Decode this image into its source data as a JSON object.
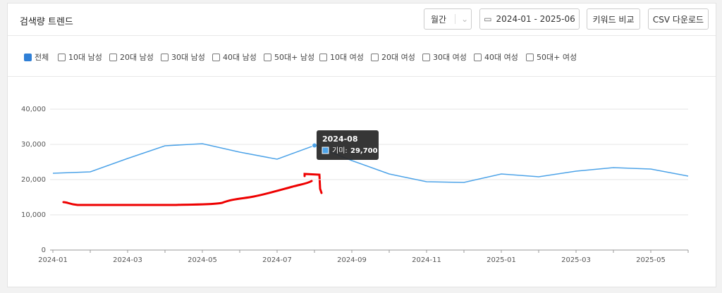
{
  "header": {
    "title": "검색량 트렌드",
    "period": "월간",
    "date_range": "2024-01 - 2025-06",
    "compare_button": "키워드 비교",
    "csv_button": "CSV 다운로드"
  },
  "filters": [
    {
      "label": "전체",
      "checked": true
    },
    {
      "label": "10대 남성",
      "checked": false
    },
    {
      "label": "20대 남성",
      "checked": false
    },
    {
      "label": "30대 남성",
      "checked": false
    },
    {
      "label": "40대 남성",
      "checked": false
    },
    {
      "label": "50대+ 남성",
      "checked": false
    },
    {
      "label": "10대 여성",
      "checked": false
    },
    {
      "label": "20대 여성",
      "checked": false
    },
    {
      "label": "30대 여성",
      "checked": false
    },
    {
      "label": "40대 여성",
      "checked": false
    },
    {
      "label": "50대+ 여성",
      "checked": false
    }
  ],
  "chart_data": {
    "type": "line",
    "categories": [
      "2024-01",
      null,
      "2024-03",
      null,
      "2024-05",
      null,
      "2024-07",
      null,
      "2024-09",
      null,
      "2024-11",
      null,
      "2025-01",
      null,
      "2025-03",
      null,
      "2025-05",
      null
    ],
    "series": [
      {
        "name": "기미",
        "color": "#4da3e8",
        "values": [
          21800,
          22200,
          26000,
          29600,
          30200,
          27800,
          25800,
          29700,
          25400,
          21600,
          19400,
          19200,
          21600,
          20800,
          22400,
          23400,
          23000,
          21000
        ]
      }
    ],
    "ylim": [
      0,
      40000
    ],
    "yticks": [
      0,
      {
        "value": 10000,
        "label": "10,000"
      },
      {
        "value": 20000,
        "label": "20,000"
      },
      {
        "value": 30000,
        "label": "30,000"
      },
      {
        "value": 40000,
        "label": "40,000"
      }
    ],
    "grid": true,
    "tooltip": {
      "index": 7,
      "title": "2024-08",
      "series_label": "기미:",
      "value_label": "29,700"
    }
  }
}
